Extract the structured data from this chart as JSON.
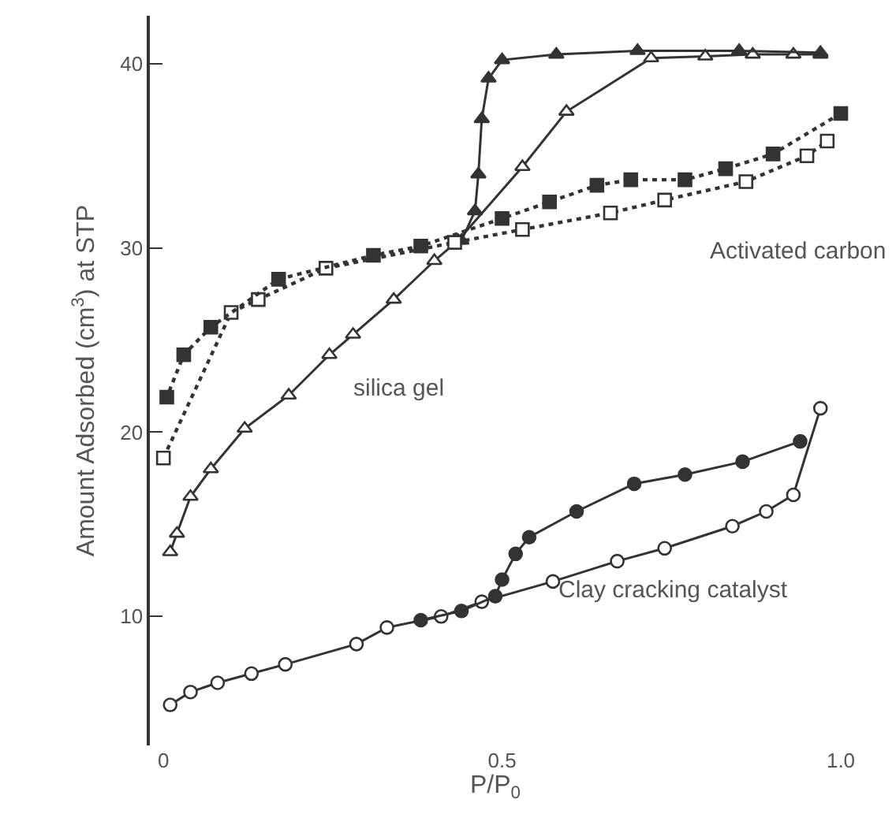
{
  "chart_data": {
    "type": "line",
    "xlabel": "P/P$_{0}$",
    "ylabel": "Amount Adsorbed (cm$^{3}$) at STP",
    "xlim": [
      -0.02,
      1.0
    ],
    "ylim": [
      3,
      42.6
    ],
    "xticks": [
      0,
      0.5,
      {
        "value": 1.0,
        "label": "1.0"
      }
    ],
    "yticks": [
      10,
      20,
      30,
      40
    ],
    "series": [
      {
        "color": "#ffffff",
        "marker": "triangle",
        "line_style": "solid",
        "x": [
          0.01,
          0.02,
          0.04,
          0.07,
          0.12,
          0.185,
          0.245,
          0.28,
          0.34,
          0.4,
          0.435,
          0.53,
          0.595,
          0.72,
          0.8,
          0.87,
          0.93,
          0.97
        ],
        "values": [
          13.5,
          14.5,
          16.5,
          18,
          20.2,
          22,
          24.2,
          25.3,
          27.2,
          29.3,
          30.4,
          34.4,
          37.4,
          40.3,
          40.4,
          40.5,
          40.5,
          40.5
        ]
      },
      {
        "color": "#333333",
        "marker": "triangle",
        "line_style": "solid",
        "x": [
          0.97,
          0.85,
          0.7,
          0.58,
          0.5,
          0.48,
          0.47,
          0.465,
          0.46,
          0.44
        ],
        "values": [
          40.6,
          40.7,
          40.7,
          40.5,
          40.2,
          39.2,
          37,
          34,
          32,
          30.4
        ]
      },
      {
        "color": "#ffffff",
        "marker": "square",
        "line_style": "dotted",
        "x": [
          0,
          0.1,
          0.14,
          0.24,
          0.43,
          0.53,
          0.66,
          0.74,
          0.86,
          0.95,
          0.98
        ],
        "values": [
          18.6,
          26.5,
          27.2,
          28.9,
          30.3,
          31,
          31.9,
          32.6,
          33.6,
          35,
          35.8
        ]
      },
      {
        "color": "#333333",
        "marker": "square",
        "line_style": "dotted",
        "x": [
          1.0,
          0.9,
          0.83,
          0.77,
          0.69,
          0.64,
          0.57,
          0.5,
          0.38,
          0.31,
          0.17,
          0.07,
          0.03,
          0.005
        ],
        "values": [
          37.3,
          35.1,
          34.3,
          33.7,
          33.7,
          33.4,
          32.5,
          31.6,
          30.1,
          29.6,
          28.3,
          25.7,
          24.2,
          21.9
        ]
      },
      {
        "color": "#ffffff",
        "marker": "circle",
        "line_style": "solid",
        "x": [
          0.01,
          0.04,
          0.08,
          0.13,
          0.18,
          0.285,
          0.33,
          0.41,
          0.47,
          0.575,
          0.67,
          0.74,
          0.84,
          0.89,
          0.93,
          0.97
        ],
        "values": [
          5.2,
          5.9,
          6.4,
          6.9,
          7.4,
          8.5,
          9.4,
          10,
          10.8,
          11.9,
          13,
          13.7,
          14.9,
          15.7,
          16.6,
          21.3
        ]
      },
      {
        "color": "#333333",
        "marker": "circle",
        "line_style": "solid",
        "x": [
          0.94,
          0.855,
          0.77,
          0.695,
          0.61,
          0.54,
          0.52,
          0.5,
          0.49,
          0.44,
          0.38
        ],
        "values": [
          19.5,
          18.4,
          17.7,
          17.2,
          15.7,
          14.3,
          13.4,
          12,
          11.1,
          10.3,
          9.8
        ]
      }
    ],
    "annotations": [
      "silica gel",
      "Activated carbon",
      "Clay cracking catalyst"
    ]
  }
}
